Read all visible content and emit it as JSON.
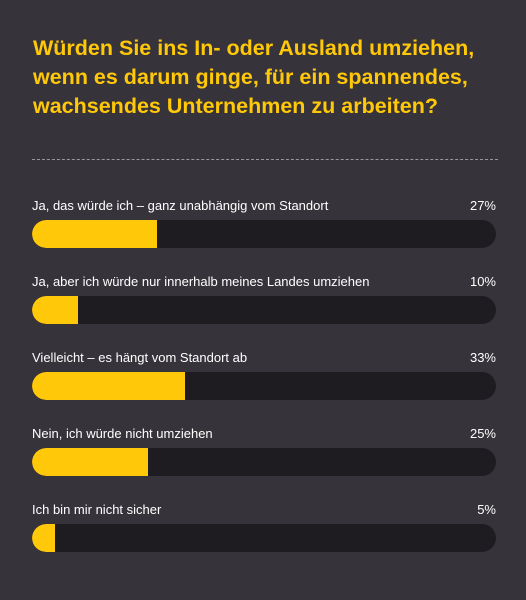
{
  "chart_data": {
    "type": "bar",
    "title": "Würden Sie ins In- oder Ausland umziehen, wenn es darum ginge, für ein spannendes, wachsendes Unternehmen zu arbeiten?",
    "orientation": "horizontal",
    "unit": "%",
    "xlim": [
      0,
      100
    ],
    "categories": [
      "Ja, das würde ich – ganz unabhängig vom Standort",
      "Ja, aber ich würde nur innerhalb meines Landes umziehen",
      "Vielleicht – es hängt vom Standort ab",
      "Nein, ich würde nicht umziehen",
      "Ich bin mir nicht sicher"
    ],
    "values": [
      27,
      10,
      33,
      25,
      5
    ],
    "value_labels": [
      "27%",
      "10%",
      "33%",
      "25%",
      "5%"
    ],
    "colors": {
      "background": "#37333a",
      "bar_fill": "#ffc808",
      "bar_track": "#1f1c21",
      "title": "#ffc808",
      "text": "#ffffff",
      "divider": "#9a979b"
    },
    "grid": false,
    "legend": "none"
  }
}
